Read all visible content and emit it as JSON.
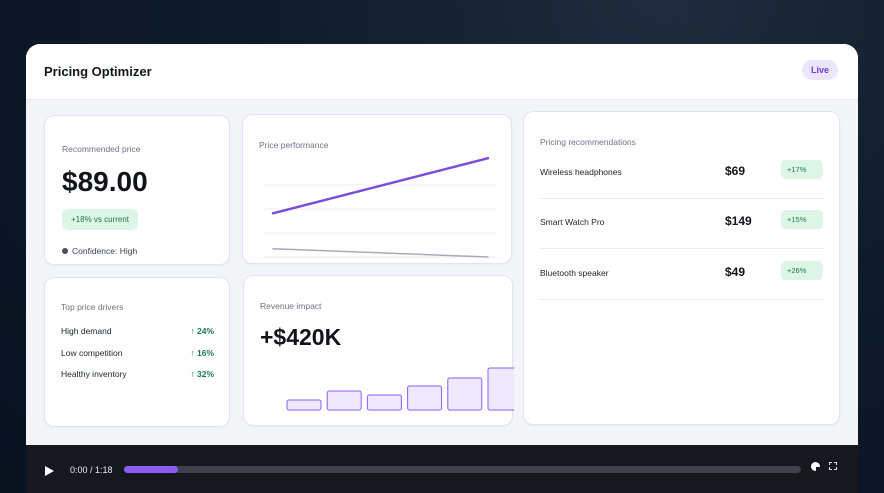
{
  "app": {
    "title": "Pricing Optimizer",
    "status_badge": "Live"
  },
  "recommended": {
    "label": "Recommended price",
    "price": "$89.00",
    "delta": "+18% vs current",
    "confidence": "Confidence: High"
  },
  "performance": {
    "label": "Price performance",
    "chart_data": {
      "type": "line",
      "x": [
        0,
        1
      ],
      "series": [
        {
          "values": [
            0.42,
            0.95
          ],
          "color": "#7c4ddd"
        },
        {
          "values": [
            0.08,
            0.0
          ],
          "color": "#a9acb6"
        }
      ],
      "grid": true
    }
  },
  "drivers": {
    "label": "Top price drivers",
    "items": [
      {
        "name": "High demand",
        "value": "↑ 24%"
      },
      {
        "name": "Low competition",
        "value": "↑ 16%"
      },
      {
        "name": "Healthy inventory",
        "value": "↑ 32%"
      }
    ]
  },
  "revenue": {
    "label": "Revenue impact",
    "value": "+$420K",
    "chart_data": {
      "type": "bar",
      "values": [
        10,
        19,
        15,
        24,
        32,
        42
      ],
      "ylim": [
        0,
        42
      ],
      "color": "#8b5cf6"
    }
  },
  "recommendations": {
    "label": "Pricing recommendations",
    "items": [
      {
        "product": "Wireless headphones",
        "price": "$69",
        "change": "+17%"
      },
      {
        "product": "Smart Watch Pro",
        "price": "$149",
        "change": "+15%"
      },
      {
        "product": "Bluetooth speaker",
        "price": "$49",
        "change": "+26%"
      }
    ]
  },
  "player": {
    "time": "0:00 / 1:18",
    "progress": 0.08,
    "icons": [
      "play-icon",
      "volume-icon",
      "fullscreen-icon"
    ]
  }
}
